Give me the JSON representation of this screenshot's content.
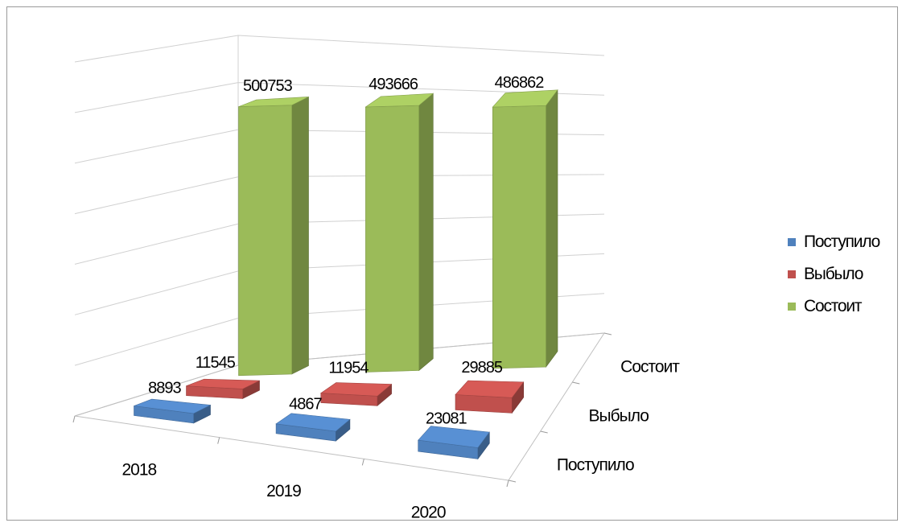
{
  "chart_data": {
    "type": "bar",
    "categories": [
      "2018",
      "2019",
      "2020"
    ],
    "series": [
      {
        "name": "Поступило",
        "values": [
          8893,
          4867,
          23081
        ],
        "color": "#4f81bd"
      },
      {
        "name": "Выбыло",
        "values": [
          11545,
          11954,
          29885
        ],
        "color": "#c0504d"
      },
      {
        "name": "Состоит",
        "values": [
          500753,
          493666,
          486862
        ],
        "color": "#9bbb59"
      }
    ],
    "depth_labels": [
      "Поступило",
      "Выбыло",
      "Состоит"
    ],
    "title": "",
    "xlabel": "",
    "ylabel": "",
    "ylim": [
      0,
      600000
    ],
    "grid": true,
    "legend": "right"
  }
}
